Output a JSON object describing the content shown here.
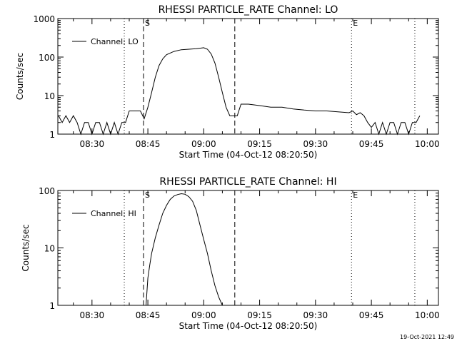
{
  "footer": {
    "timestamp": "19-Oct-2021 12:49"
  },
  "chart_data": [
    {
      "type": "line",
      "title": "RHESSI PARTICLE_RATE Channel: LO",
      "xlabel": "Start Time (04-Oct-12 08:20:50)",
      "ylabel": "Counts/sec",
      "yscale": "log",
      "xlim": [
        "08:20:50",
        "10:03:00"
      ],
      "ylim": [
        1,
        1000
      ],
      "xticks": [
        "08:30",
        "08:45",
        "09:00",
        "09:15",
        "09:30",
        "09:45",
        "10:00"
      ],
      "yticks": [
        "1",
        "10",
        "100",
        "1000"
      ],
      "grid": false,
      "legend": {
        "position": "top-left",
        "entries": [
          "Channel: LO"
        ]
      },
      "markers": [
        {
          "time": "08:38:40",
          "style": "dotted",
          "label": ""
        },
        {
          "time": "08:43:50",
          "style": "dashed",
          "label": "S"
        },
        {
          "time": "09:08:20",
          "style": "dashed",
          "label": ""
        },
        {
          "time": "09:39:40",
          "style": "dotted",
          "label": "E"
        },
        {
          "time": "09:56:40",
          "style": "dotted",
          "label": ""
        }
      ],
      "series": [
        {
          "name": "Channel: LO",
          "points": [
            [
              "08:21:00",
              3
            ],
            [
              "08:22:00",
              2
            ],
            [
              "08:23:00",
              3
            ],
            [
              "08:24:00",
              2
            ],
            [
              "08:25:00",
              3
            ],
            [
              "08:26:00",
              2
            ],
            [
              "08:27:00",
              1
            ],
            [
              "08:28:00",
              2
            ],
            [
              "08:29:00",
              2
            ],
            [
              "08:30:00",
              1
            ],
            [
              "08:31:00",
              2
            ],
            [
              "08:32:00",
              2
            ],
            [
              "08:33:00",
              1
            ],
            [
              "08:34:00",
              2
            ],
            [
              "08:35:00",
              1
            ],
            [
              "08:36:00",
              2
            ],
            [
              "08:37:00",
              1
            ],
            [
              "08:38:00",
              2
            ],
            [
              "08:39:00",
              2
            ],
            [
              "08:40:00",
              4
            ],
            [
              "08:41:00",
              4
            ],
            [
              "08:42:00",
              4
            ],
            [
              "08:43:00",
              4
            ],
            [
              "08:44:00",
              2.5
            ],
            [
              "08:45:00",
              5
            ],
            [
              "08:46:00",
              12
            ],
            [
              "08:47:00",
              30
            ],
            [
              "08:48:00",
              60
            ],
            [
              "08:49:00",
              90
            ],
            [
              "08:50:00",
              115
            ],
            [
              "08:52:00",
              140
            ],
            [
              "08:54:00",
              155
            ],
            [
              "08:56:00",
              160
            ],
            [
              "08:58:00",
              165
            ],
            [
              "09:00:00",
              175
            ],
            [
              "09:01:00",
              160
            ],
            [
              "09:02:00",
              120
            ],
            [
              "09:03:00",
              70
            ],
            [
              "09:04:00",
              30
            ],
            [
              "09:05:00",
              12
            ],
            [
              "09:06:00",
              5
            ],
            [
              "09:07:00",
              3
            ],
            [
              "09:08:00",
              3
            ],
            [
              "09:09:00",
              3
            ],
            [
              "09:10:00",
              6
            ],
            [
              "09:12:00",
              6
            ],
            [
              "09:15:00",
              5.5
            ],
            [
              "09:18:00",
              5
            ],
            [
              "09:21:00",
              5
            ],
            [
              "09:24:00",
              4.5
            ],
            [
              "09:27:00",
              4.2
            ],
            [
              "09:30:00",
              4
            ],
            [
              "09:33:00",
              4
            ],
            [
              "09:36:00",
              3.8
            ],
            [
              "09:39:00",
              3.6
            ],
            [
              "09:40:00",
              4
            ],
            [
              "09:41:00",
              3.2
            ],
            [
              "09:42:00",
              3.6
            ],
            [
              "09:43:00",
              3
            ],
            [
              "09:44:00",
              2
            ],
            [
              "09:45:00",
              1.5
            ],
            [
              "09:46:00",
              2
            ],
            [
              "09:47:00",
              1
            ],
            [
              "09:48:00",
              2
            ],
            [
              "09:49:00",
              1
            ],
            [
              "09:50:00",
              2
            ],
            [
              "09:51:00",
              2
            ],
            [
              "09:52:00",
              1
            ],
            [
              "09:53:00",
              2
            ],
            [
              "09:54:00",
              2
            ],
            [
              "09:55:00",
              1
            ],
            [
              "09:56:00",
              2
            ],
            [
              "09:57:00",
              2
            ],
            [
              "09:58:00",
              3
            ]
          ]
        }
      ]
    },
    {
      "type": "line",
      "title": "RHESSI PARTICLE_RATE Channel: HI",
      "xlabel": "Start Time (04-Oct-12 08:20:50)",
      "ylabel": "Counts/sec",
      "yscale": "log",
      "xlim": [
        "08:20:50",
        "10:03:00"
      ],
      "ylim": [
        1,
        100
      ],
      "xticks": [
        "08:30",
        "08:45",
        "09:00",
        "09:15",
        "09:30",
        "09:45",
        "10:00"
      ],
      "yticks": [
        "1",
        "10",
        "100"
      ],
      "grid": false,
      "legend": {
        "position": "top-left",
        "entries": [
          "Channel: HI"
        ]
      },
      "markers": [
        {
          "time": "08:38:40",
          "style": "dotted",
          "label": ""
        },
        {
          "time": "08:43:50",
          "style": "dashed",
          "label": "S"
        },
        {
          "time": "09:08:20",
          "style": "dashed",
          "label": ""
        },
        {
          "time": "09:39:40",
          "style": "dotted",
          "label": "E"
        },
        {
          "time": "09:56:40",
          "style": "dotted",
          "label": ""
        }
      ],
      "series": [
        {
          "name": "Channel: HI",
          "points": [
            [
              "08:44:30",
              1
            ],
            [
              "08:45:00",
              3
            ],
            [
              "08:45:30",
              5
            ],
            [
              "08:46:00",
              8
            ],
            [
              "08:47:00",
              15
            ],
            [
              "08:48:00",
              25
            ],
            [
              "08:49:00",
              40
            ],
            [
              "08:50:00",
              55
            ],
            [
              "08:51:00",
              70
            ],
            [
              "08:52:00",
              80
            ],
            [
              "08:53:00",
              85
            ],
            [
              "08:54:00",
              88
            ],
            [
              "08:55:00",
              86
            ],
            [
              "08:56:00",
              78
            ],
            [
              "08:57:00",
              65
            ],
            [
              "08:58:00",
              45
            ],
            [
              "08:59:00",
              25
            ],
            [
              "09:00:00",
              14
            ],
            [
              "09:01:00",
              8
            ],
            [
              "09:02:00",
              4
            ],
            [
              "09:03:00",
              2.2
            ],
            [
              "09:04:00",
              1.4
            ],
            [
              "09:05:00",
              1
            ]
          ]
        }
      ]
    }
  ]
}
